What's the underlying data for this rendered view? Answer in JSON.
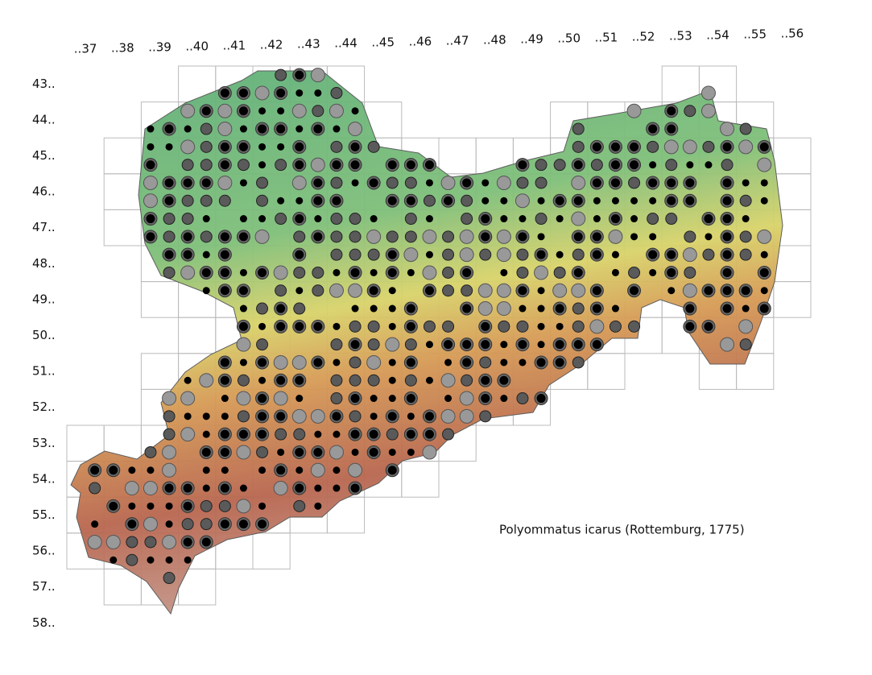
{
  "column_labels": [
    "..37",
    "..38",
    "..39",
    "..40",
    "..41",
    "..42",
    "..43",
    "..44",
    "..45",
    "..46",
    "..47",
    "..48",
    "..49",
    "..50",
    "..51",
    "..52",
    "..53",
    "..54",
    "..55",
    "..56"
  ],
  "row_labels": [
    "43..",
    "44..",
    "45..",
    "46..",
    "47..",
    "48..",
    "49..",
    "50..",
    "51..",
    "52..",
    "53..",
    "54..",
    "55..",
    "56..",
    "57..",
    "58.."
  ],
  "species_label": "Polyommatus icarus (Rottemburg, 1775)"
}
